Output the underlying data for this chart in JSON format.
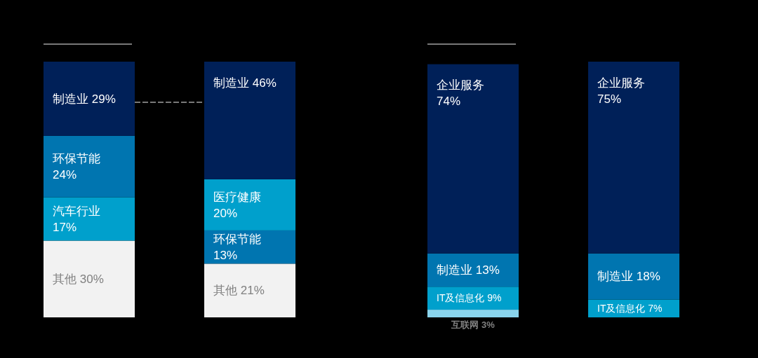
{
  "chart_data": {
    "type": "bar",
    "stacked": true,
    "categories": [
      null,
      null,
      null,
      null
    ],
    "series": [
      {
        "values": [
          30,
          21,
          3,
          7
        ],
        "colors": [
          "#f2f2f2",
          "#f2f2f2",
          "#8ad4ec",
          "#00a0cc"
        ],
        "value_labels": [
          "其他 30%",
          "其他 21%",
          "互联网 3%",
          "IT及信息化 7%"
        ]
      },
      {
        "values": [
          17,
          13,
          9,
          18
        ],
        "colors": [
          "#00a0cc",
          "#0075b0",
          "#00a0cc",
          "#0075b0"
        ],
        "value_labels": [
          "汽车行业\n17%",
          "环保节能\n13%",
          "IT及信息化 9%",
          "制造业 18%"
        ]
      },
      {
        "values": [
          24,
          20,
          13,
          75
        ],
        "colors": [
          "#0075b0",
          "#00a0cc",
          "#0075b0",
          "#002058"
        ],
        "value_labels": [
          "环保节能\n24%",
          "医疗健康\n20%",
          "制造业 13%",
          "企业服务\n75%"
        ]
      },
      {
        "values": [
          29,
          46,
          74,
          null
        ],
        "colors": [
          "#002058",
          "#002058",
          "#002058",
          null
        ],
        "value_labels": [
          "制造业 29%",
          "制造业 46%",
          "企业服务\n74%",
          null
        ]
      }
    ]
  }
}
